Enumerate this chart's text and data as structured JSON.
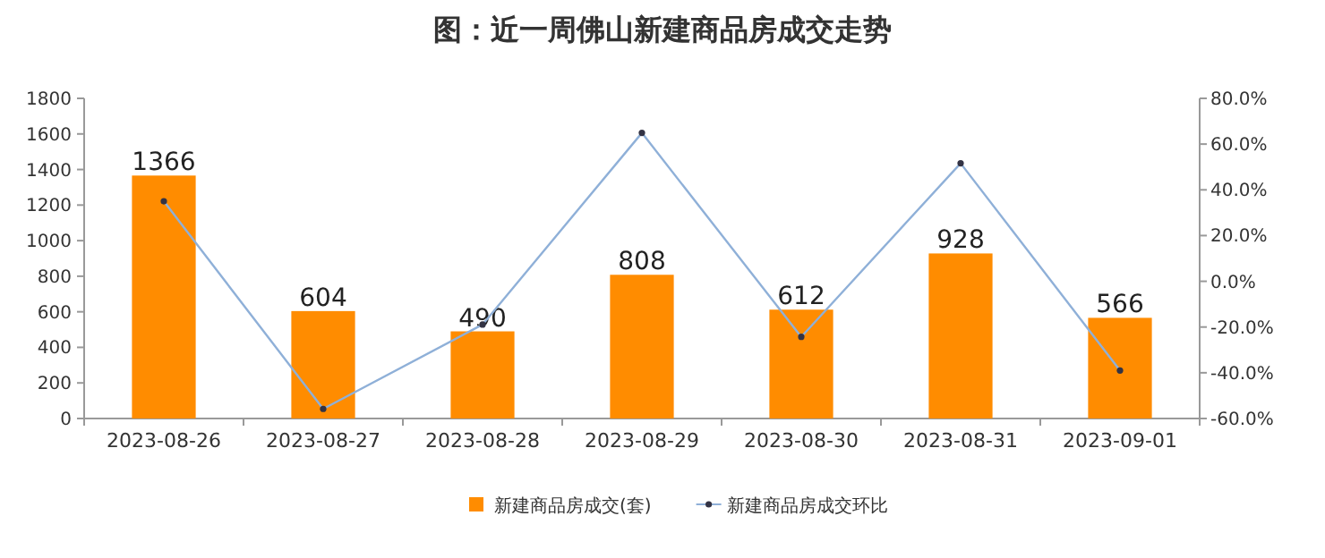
{
  "chart_data": {
    "type": "bar",
    "title": "图：近一周佛山新建商品房成交走势",
    "categories": [
      "2023-08-26",
      "2023-08-27",
      "2023-08-28",
      "2023-08-29",
      "2023-08-30",
      "2023-08-31",
      "2023-09-01"
    ],
    "series": [
      {
        "name": "新建商品房成交(套)",
        "color": "#ff8c00",
        "values": [
          1366,
          604,
          490,
          808,
          612,
          928,
          566
        ],
        "value_labels": [
          "1366",
          "604",
          "490",
          "808",
          "612",
          "928",
          "566"
        ]
      },
      {
        "name": "新建商品房成交环比",
        "type": "line",
        "axis": "y2",
        "color": "#8fb0d8",
        "marker": "circle",
        "values": [
          35,
          -55.8,
          -18.9,
          64.9,
          -24.3,
          51.6,
          -39.0
        ]
      }
    ],
    "ylim": [
      0,
      1800
    ],
    "yticks": [
      0,
      200,
      400,
      600,
      800,
      1000,
      1200,
      1400,
      1600,
      1800
    ],
    "y2lim": [
      -60,
      80
    ],
    "y2ticks": [
      {
        "value": -60,
        "label": "-60.0%"
      },
      {
        "value": -40,
        "label": "-40.0%"
      },
      {
        "value": -20,
        "label": "-20.0%"
      },
      {
        "value": 0,
        "label": "0.0%"
      },
      {
        "value": 20,
        "label": "20.0%"
      },
      {
        "value": 40,
        "label": "40.0%"
      },
      {
        "value": 60,
        "label": "60.0%"
      },
      {
        "value": 80,
        "label": "80.0%"
      }
    ],
    "grid": false,
    "legend": "bottom"
  }
}
